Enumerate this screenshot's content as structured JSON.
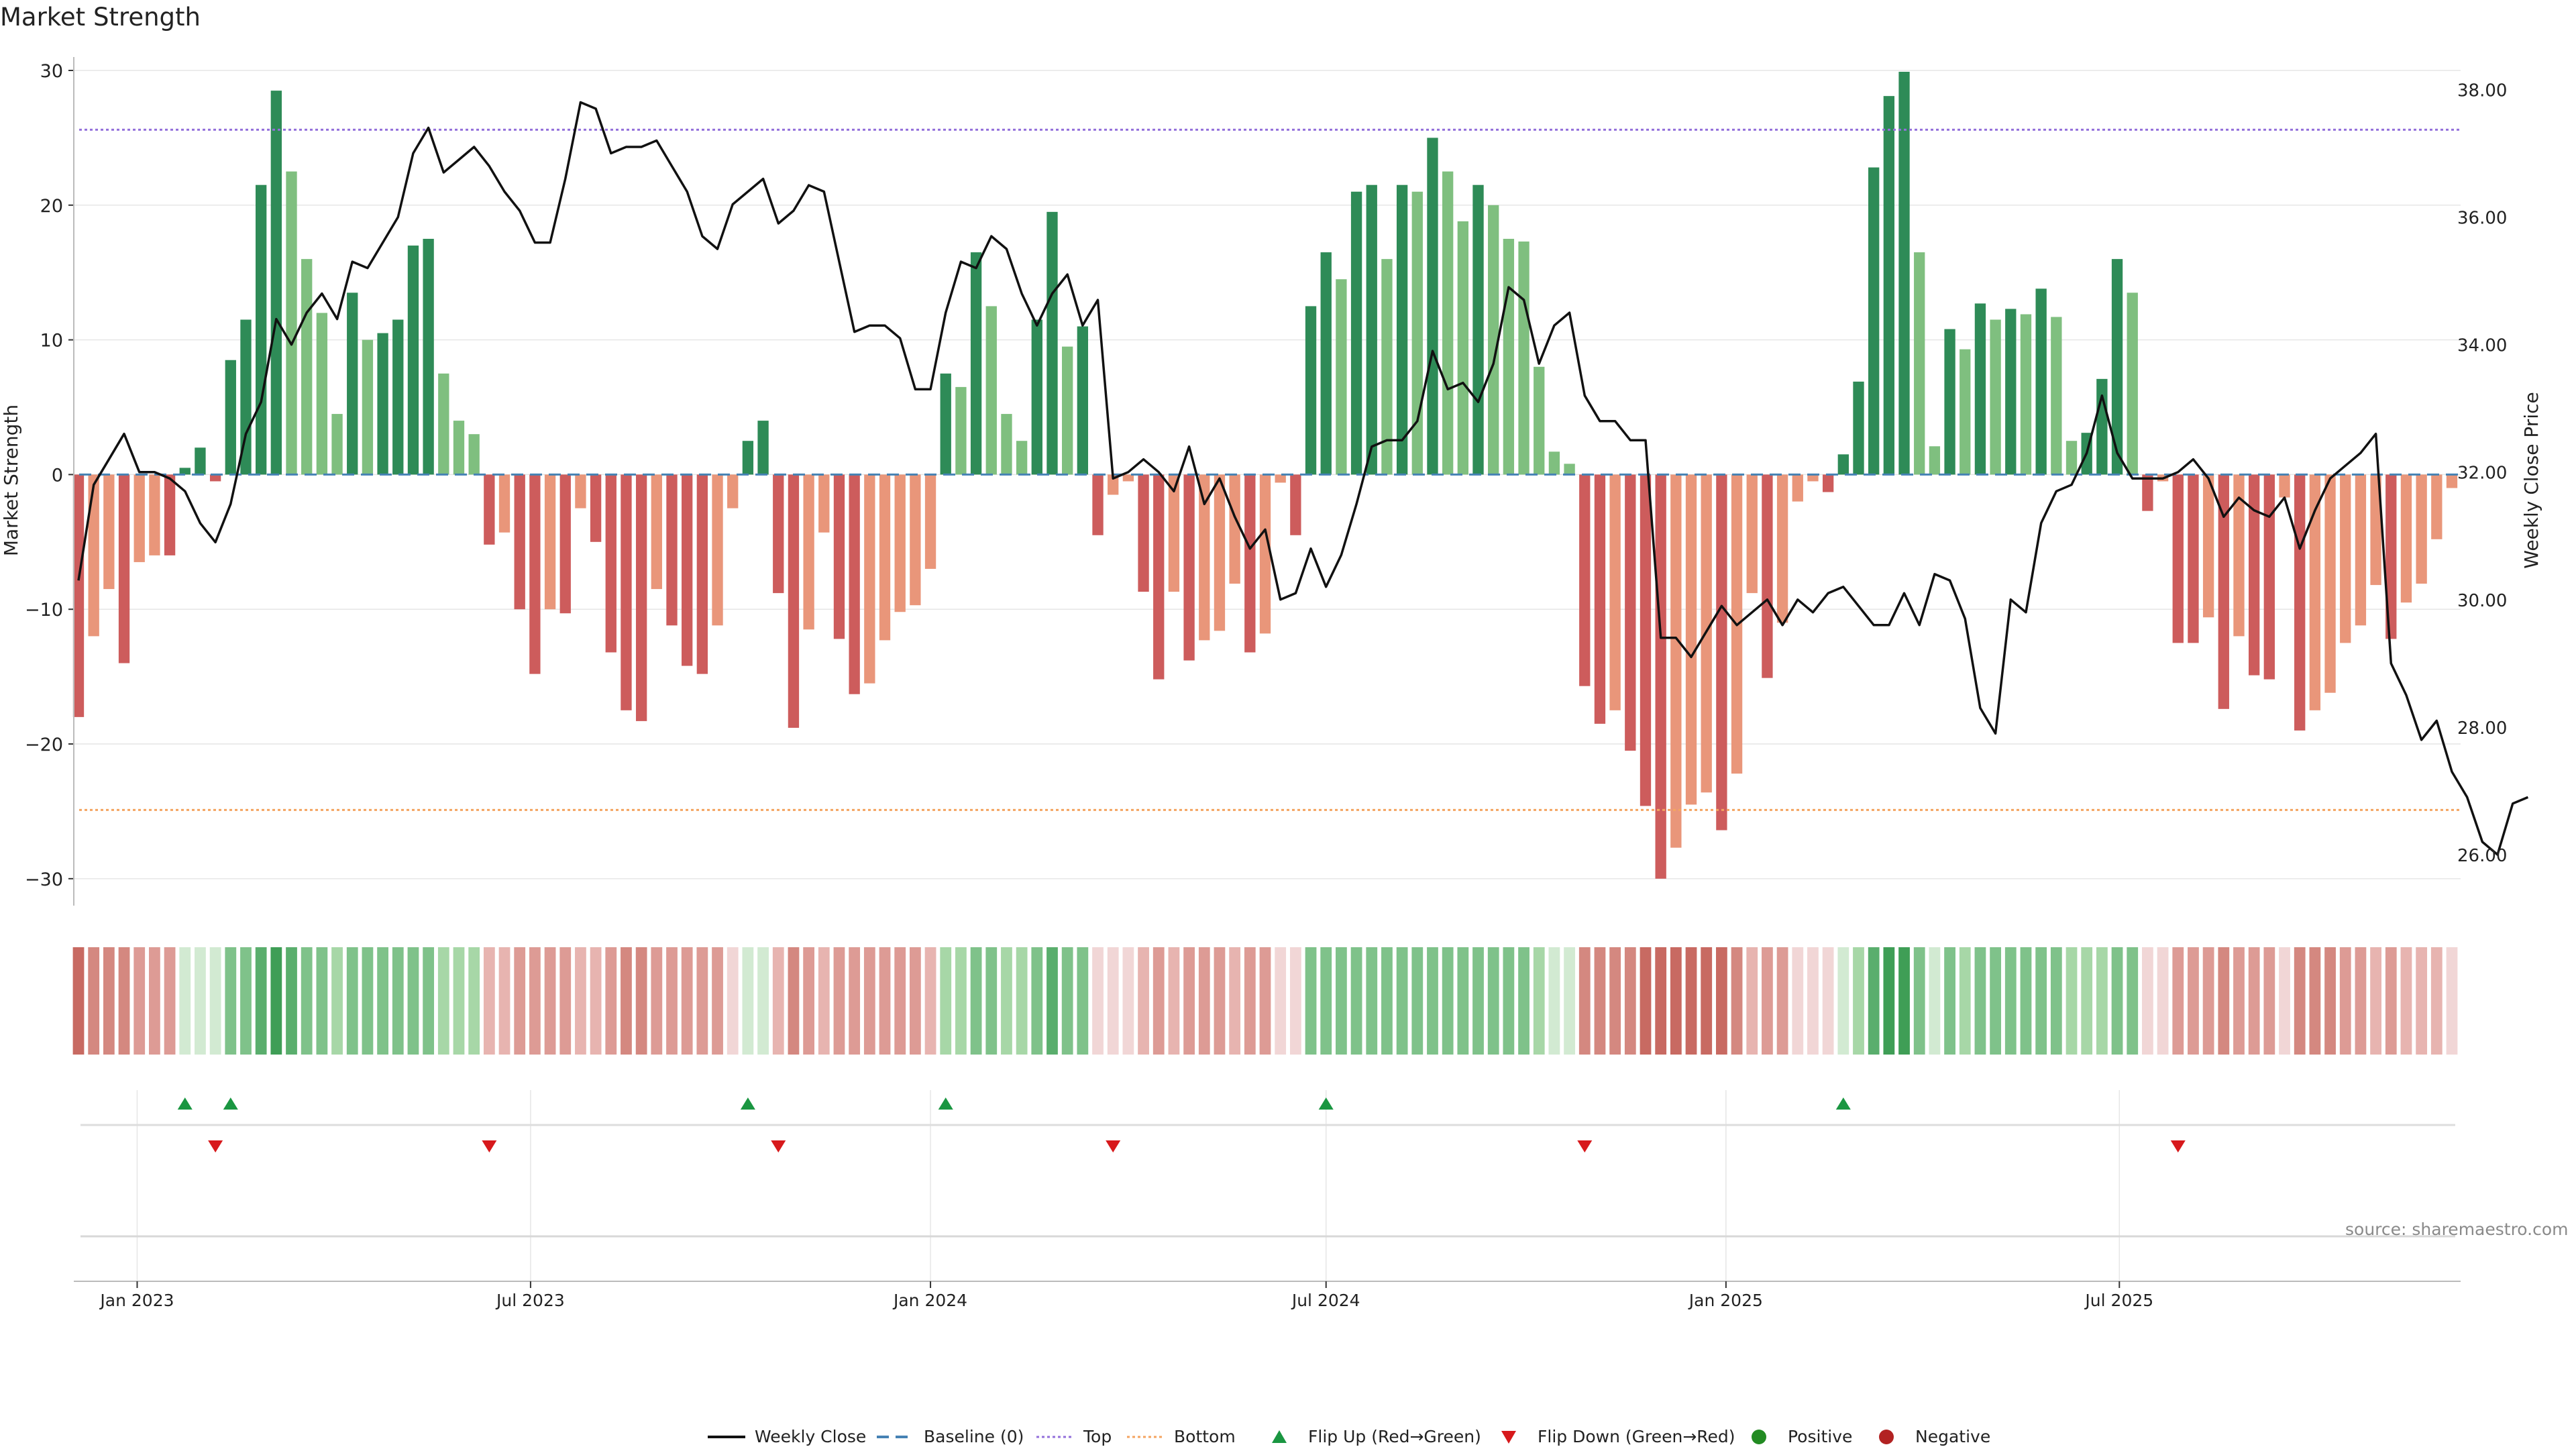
{
  "title": "Market Strength",
  "credit": "source: sharemaestro.com",
  "chart_data": {
    "type": "bar",
    "title": "Market Strength",
    "ylabel": "Market Strength",
    "y2label": "Weekly Close Price",
    "ylim": [
      -32,
      30
    ],
    "y2lim": [
      25.2,
      38.3
    ],
    "yticks": [
      30,
      20,
      10,
      0,
      -10,
      -20,
      -30
    ],
    "y2ticks": [
      "38.00",
      "36.00",
      "34.00",
      "32.00",
      "30.00",
      "28.00",
      "26.00"
    ],
    "y2tick_values": [
      38,
      36,
      34,
      32,
      30,
      28,
      26
    ],
    "top_level": 25.6,
    "bottom_level": -24.9,
    "x_start": "2022-12-05",
    "week_step_days": 7,
    "xtick_labels": [
      "Jan 2023",
      "Jul 2023",
      "Jan 2024",
      "Jul 2024",
      "Jan 2025",
      "Jul 2025"
    ],
    "xtick_dates": [
      "2023-01-01",
      "2023-07-01",
      "2024-01-01",
      "2024-07-01",
      "2025-01-01",
      "2025-07-01"
    ],
    "strength": [
      -18,
      -12,
      -8.5,
      -14,
      -6.5,
      -6,
      -6,
      0.5,
      2,
      -0.5,
      8.5,
      11.5,
      21.5,
      28.5,
      22.5,
      16,
      12,
      4.5,
      13.5,
      10,
      10.5,
      11.5,
      17,
      17.5,
      7.5,
      4,
      3,
      -5.2,
      -4.3,
      -10,
      -14.8,
      -10,
      -10.3,
      -2.5,
      -5,
      -13.2,
      -17.5,
      -18.3,
      -8.5,
      -11.2,
      -14.2,
      -14.8,
      -11.2,
      -2.5,
      2.5,
      4,
      -8.8,
      -18.8,
      -11.5,
      -4.3,
      -12.2,
      -16.3,
      -15.5,
      -12.3,
      -10.2,
      -9.7,
      -7,
      7.5,
      6.5,
      16.5,
      12.5,
      4.5,
      2.5,
      11.5,
      19.5,
      9.5,
      11,
      -4.5,
      -1.5,
      -0.5,
      -8.7,
      -15.2,
      -8.7,
      -13.8,
      -12.3,
      -11.6,
      -8.1,
      -13.2,
      -11.8,
      -0.6,
      -4.5,
      12.5,
      16.5,
      14.5,
      21,
      21.5,
      16,
      21.5,
      21,
      25,
      22.5,
      18.8,
      21.5,
      20,
      17.5,
      17.3,
      8,
      1.7,
      0.8,
      -15.7,
      -18.5,
      -17.5,
      -20.5,
      -24.6,
      -30,
      -27.7,
      -24.5,
      -23.6,
      -26.4,
      -22.2,
      -8.8,
      -15.1,
      -11,
      -2,
      -0.5,
      -1.3,
      1.5,
      6.9,
      22.8,
      28.1,
      29.9,
      16.5,
      2.1,
      10.8,
      9.3,
      12.7,
      11.5,
      12.3,
      11.9,
      13.8,
      11.7,
      2.5,
      3.1,
      7.1,
      16,
      13.5,
      -2.7,
      -0.5,
      -12.5,
      -12.5,
      -10.6,
      -17.4,
      -12,
      -14.9,
      -15.2,
      -1.7,
      -19,
      -17.5,
      -16.2,
      -12.5,
      -11.2,
      -8.2,
      -12.2,
      -9.5,
      -8.1,
      -4.8,
      -1
    ],
    "weekly_close": [
      30.3,
      31.8,
      32.2,
      32.6,
      32.0,
      32.0,
      31.9,
      31.7,
      31.2,
      30.9,
      31.5,
      32.6,
      33.1,
      34.4,
      34.0,
      34.5,
      34.8,
      34.4,
      35.3,
      35.2,
      35.6,
      36.0,
      37.0,
      37.4,
      36.7,
      36.9,
      37.1,
      36.8,
      36.4,
      36.1,
      35.6,
      35.6,
      36.6,
      37.8,
      37.7,
      37.0,
      37.1,
      37.1,
      37.2,
      36.8,
      36.4,
      35.7,
      35.5,
      36.2,
      36.4,
      36.6,
      35.9,
      36.1,
      36.5,
      36.4,
      35.3,
      34.2,
      34.3,
      34.3,
      34.1,
      33.3,
      33.3,
      34.5,
      35.3,
      35.2,
      35.7,
      35.5,
      34.8,
      34.3,
      34.8,
      35.1,
      34.3,
      34.7,
      31.9,
      32.0,
      32.2,
      32.0,
      31.7,
      32.4,
      31.5,
      31.9,
      31.3,
      30.8,
      31.1,
      30.0,
      30.1,
      30.8,
      30.2,
      30.7,
      31.5,
      32.4,
      32.5,
      32.5,
      32.8,
      33.9,
      33.3,
      33.4,
      33.1,
      33.7,
      34.9,
      34.7,
      33.7,
      34.3,
      34.5,
      33.2,
      32.8,
      32.8,
      32.5,
      32.5,
      29.4,
      29.4,
      29.1,
      29.5,
      29.9,
      29.6,
      29.8,
      30.0,
      29.6,
      30.0,
      29.8,
      30.1,
      30.2,
      29.9,
      29.6,
      29.6,
      30.1,
      29.6,
      30.4,
      30.3,
      29.7,
      28.3,
      27.9,
      30.0,
      29.8,
      31.2,
      31.7,
      31.8,
      32.3,
      33.2,
      32.3,
      31.9,
      31.9,
      31.9,
      32.0,
      32.2,
      31.9,
      31.3,
      31.6,
      31.4,
      31.3,
      31.6,
      30.8,
      31.4,
      31.9,
      32.1,
      32.3,
      32.6,
      29.0,
      28.5,
      27.8,
      28.1,
      27.3,
      26.9,
      26.2,
      26.0,
      26.8,
      26.9
    ],
    "flip_up_weeks": [
      7,
      10,
      44,
      57,
      82,
      116
    ],
    "flip_down_weeks": [
      9,
      27,
      46,
      68,
      99,
      138
    ],
    "heat_strength": [
      -5,
      -4,
      -4,
      -4,
      -3,
      -3,
      -3,
      1,
      1,
      1,
      3,
      3,
      4,
      5,
      4,
      3,
      3,
      2,
      3,
      3,
      3,
      3,
      3,
      3,
      2,
      2,
      2,
      -2,
      -2,
      -3,
      -3,
      -3,
      -3,
      -2,
      -2,
      -3,
      -4,
      -4,
      -3,
      -3,
      -3,
      -3,
      -3,
      -1,
      1,
      1,
      -2,
      -4,
      -3,
      -2,
      -3,
      -3,
      -3,
      -3,
      -3,
      -3,
      -2,
      2,
      2,
      3,
      3,
      2,
      2,
      3,
      4,
      3,
      3,
      -1,
      -1,
      -1,
      -2,
      -3,
      -2,
      -3,
      -3,
      -3,
      -2,
      -3,
      -3,
      -1,
      -1,
      3,
      3,
      3,
      3,
      3,
      3,
      3,
      3,
      3,
      3,
      3,
      3,
      3,
      3,
      3,
      2,
      1,
      1,
      -4,
      -4,
      -4,
      -4,
      -5,
      -5,
      -5,
      -5,
      -5,
      -5,
      -4,
      -2,
      -3,
      -3,
      -1,
      -1,
      -1,
      1,
      2,
      4,
      5,
      5,
      3,
      1,
      3,
      2,
      3,
      3,
      3,
      3,
      3,
      3,
      2,
      2,
      2,
      3,
      3,
      -1,
      -1,
      -3,
      -3,
      -3,
      -4,
      -3,
      -3,
      -3,
      -1,
      -4,
      -4,
      -4,
      -3,
      -3,
      -2,
      -3,
      -2,
      -2,
      -2,
      -1
    ],
    "colors": {
      "strong_positive": "#2e8b57",
      "weak_positive": "#7fbf7f",
      "strong_negative": "#cd5c5c",
      "weak_negative": "#e9967a",
      "price_line": "#111111",
      "baseline": "#4682b4",
      "top": "#9370db",
      "bottom": "#f4a460",
      "flip_up": "#1a9641",
      "flip_down": "#d7191c",
      "positive_dot": "#228b22",
      "negative_dot": "#b22222",
      "grid": "#e6e6e6",
      "axis": "#bbbbbb"
    },
    "legend": {
      "weekly_close": "Weekly Close",
      "baseline": "Baseline (0)",
      "top": "Top",
      "bottom": "Bottom",
      "flip_up": "Flip Up (Red→Green)",
      "flip_down": "Flip Down (Green→Red)",
      "positive": "Positive",
      "negative": "Negative"
    }
  }
}
